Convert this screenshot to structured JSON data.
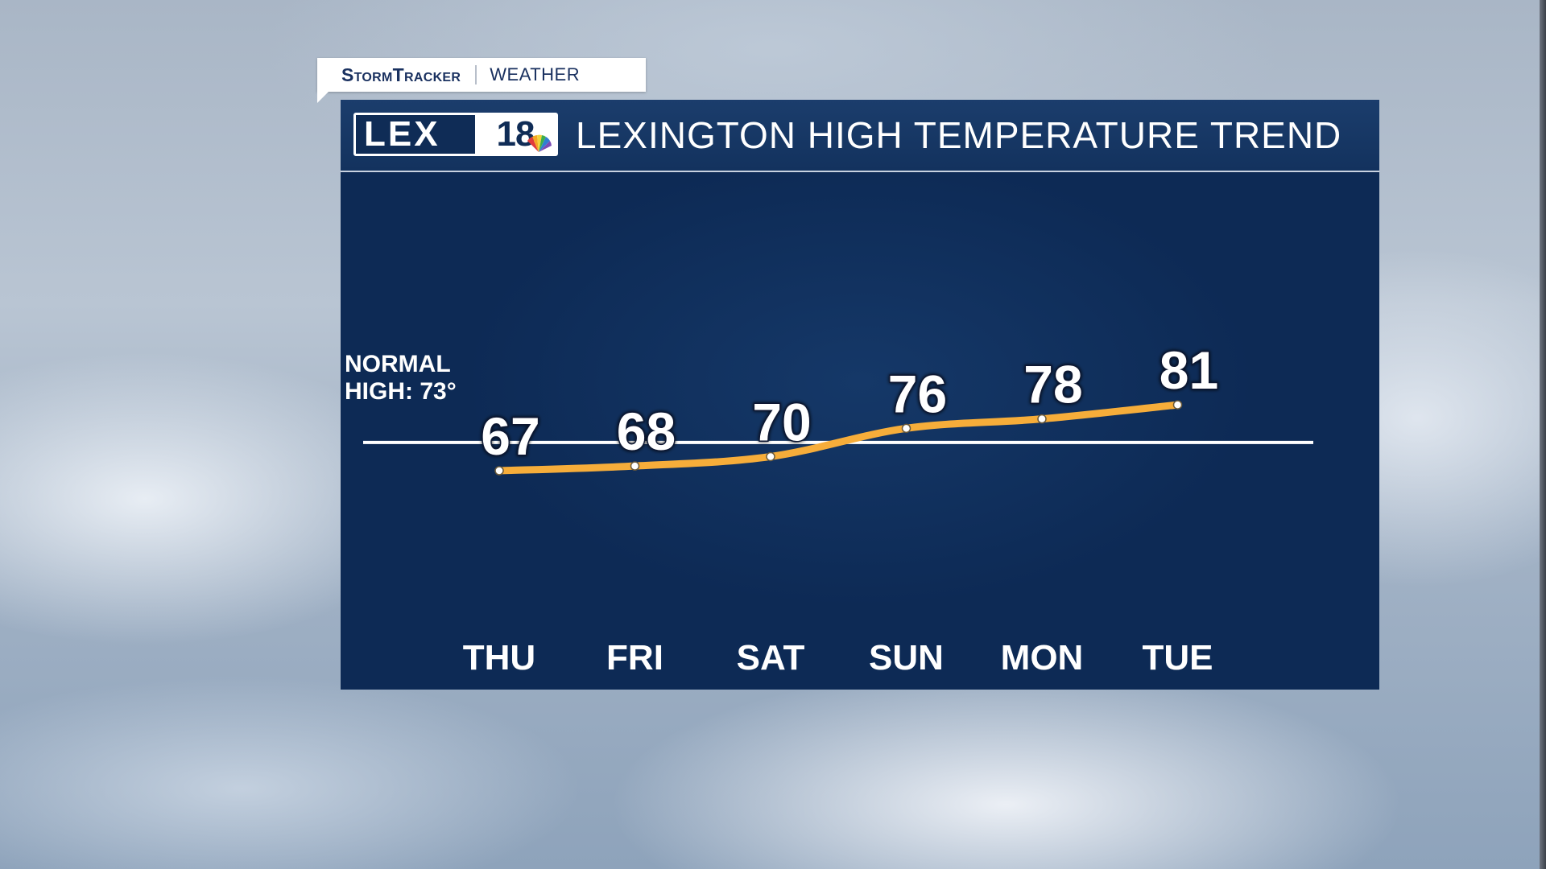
{
  "brand": {
    "name": "StormTracker",
    "sub": "WEATHER",
    "logo_text": "LEX",
    "logo_number": "18"
  },
  "title": "LEXINGTON HIGH TEMPERATURE TREND",
  "normal": {
    "line1": "NORMAL",
    "line2": "HIGH: 73°",
    "value": 73
  },
  "colors": {
    "panel": "#0d2a55",
    "line": "#f6ad3a",
    "normal_line": "#ffffff",
    "text": "#ffffff"
  },
  "chart_data": {
    "type": "line",
    "categories": [
      "THU",
      "FRI",
      "SAT",
      "SUN",
      "MON",
      "TUE"
    ],
    "values": [
      67,
      68,
      70,
      76,
      78,
      81
    ],
    "data_labels": [
      "67",
      "68",
      "70",
      "76",
      "78",
      "81"
    ],
    "reference_line": 73,
    "title": "LEXINGTON HIGH TEMPERATURE TREND",
    "xlabel": "",
    "ylabel": "",
    "grid": false,
    "legend": "none"
  }
}
